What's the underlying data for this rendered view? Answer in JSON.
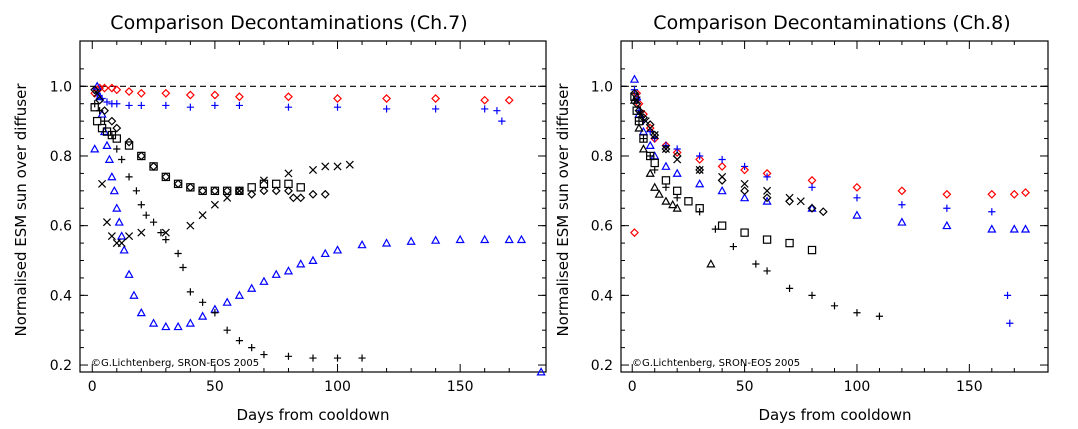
{
  "chart_data": [
    {
      "type": "scatter",
      "title": "Comparison Decontaminations (Ch.7)",
      "xlabel": "Days from cooldown",
      "ylabel": "Normalised ESM sun over diffuser",
      "xlim": [
        -5,
        185
      ],
      "ylim": [
        0.18,
        1.13
      ],
      "xticks": [
        0,
        50,
        100,
        150
      ],
      "yticks": [
        0.2,
        0.4,
        0.6,
        0.8,
        1.0
      ],
      "ytick_labels": [
        "0.2",
        "0.4",
        "0.6",
        "0.8",
        "1.0"
      ],
      "reference_line": 1.0,
      "grid": false,
      "credit": "©G.Lichtenberg, SRON-EOS 2005",
      "series": [
        {
          "marker": "diamond",
          "color": "#ff0000",
          "x": [
            1,
            2,
            3,
            5,
            8,
            10,
            15,
            20,
            30,
            40,
            50,
            60,
            80,
            100,
            120,
            140,
            160,
            170
          ],
          "y": [
            0.98,
            0.99,
            0.995,
            0.995,
            0.995,
            0.99,
            0.985,
            0.98,
            0.98,
            0.975,
            0.975,
            0.97,
            0.97,
            0.965,
            0.965,
            0.965,
            0.96,
            0.96
          ]
        },
        {
          "marker": "plus",
          "color": "#0000ff",
          "x": [
            2,
            4,
            6,
            8,
            10,
            15,
            20,
            30,
            40,
            50,
            60,
            80,
            100,
            120,
            140,
            160,
            165,
            167
          ],
          "y": [
            0.98,
            0.965,
            0.955,
            0.95,
            0.95,
            0.945,
            0.945,
            0.945,
            0.94,
            0.945,
            0.945,
            0.94,
            0.94,
            0.935,
            0.935,
            0.935,
            0.93,
            0.9
          ]
        },
        {
          "marker": "triangle",
          "color": "#0000ff",
          "x": [
            1,
            2,
            3,
            4,
            5,
            6,
            7,
            8,
            9,
            10,
            11,
            12,
            13,
            15,
            17,
            20,
            25,
            30,
            35,
            40,
            45,
            50,
            55,
            60,
            65,
            70,
            75,
            80,
            85,
            90,
            95,
            100,
            110,
            120,
            130,
            140,
            150,
            160,
            170,
            175
          ],
          "y": [
            0.82,
            1.0,
            0.97,
            0.92,
            0.87,
            0.83,
            0.79,
            0.74,
            0.7,
            0.65,
            0.61,
            0.57,
            0.53,
            0.46,
            0.4,
            0.35,
            0.32,
            0.31,
            0.31,
            0.32,
            0.34,
            0.36,
            0.38,
            0.4,
            0.42,
            0.44,
            0.46,
            0.47,
            0.49,
            0.5,
            0.52,
            0.53,
            0.545,
            0.55,
            0.555,
            0.558,
            0.56,
            0.56,
            0.56,
            0.56
          ]
        },
        {
          "marker": "diamond",
          "color": "#000000",
          "x": [
            1,
            3,
            5,
            8,
            10,
            15,
            20,
            25,
            30,
            35,
            40,
            45,
            50,
            55,
            60,
            65,
            70,
            75,
            80,
            82,
            85,
            90,
            95
          ],
          "y": [
            0.99,
            0.96,
            0.93,
            0.9,
            0.88,
            0.84,
            0.8,
            0.77,
            0.74,
            0.72,
            0.71,
            0.7,
            0.7,
            0.7,
            0.7,
            0.69,
            0.7,
            0.7,
            0.7,
            0.68,
            0.68,
            0.69,
            0.69
          ]
        },
        {
          "marker": "square",
          "color": "#000000",
          "x": [
            1,
            2,
            4,
            6,
            8,
            10,
            15,
            20,
            25,
            30,
            35,
            40,
            45,
            50,
            55,
            60,
            65,
            70,
            75,
            80,
            85
          ],
          "y": [
            0.94,
            0.9,
            0.88,
            0.87,
            0.86,
            0.85,
            0.83,
            0.8,
            0.77,
            0.74,
            0.72,
            0.71,
            0.7,
            0.7,
            0.7,
            0.7,
            0.71,
            0.72,
            0.72,
            0.72,
            0.71
          ]
        },
        {
          "marker": "cross",
          "color": "#000000",
          "x": [
            2,
            4,
            6,
            8,
            10,
            12,
            15,
            20,
            30,
            40,
            45,
            50,
            55,
            60,
            70,
            80,
            90,
            95,
            100,
            105
          ],
          "y": [
            0.98,
            0.72,
            0.61,
            0.57,
            0.55,
            0.55,
            0.57,
            0.58,
            0.58,
            0.6,
            0.63,
            0.66,
            0.68,
            0.7,
            0.73,
            0.75,
            0.76,
            0.77,
            0.77,
            0.775
          ]
        },
        {
          "marker": "plus",
          "color": "#000000",
          "x": [
            1,
            3,
            5,
            8,
            10,
            12,
            15,
            18,
            20,
            22,
            25,
            28,
            30,
            35,
            37,
            40,
            45,
            50,
            55,
            60,
            65,
            70,
            80,
            90,
            100,
            110
          ],
          "y": [
            0.95,
            0.93,
            0.9,
            0.86,
            0.82,
            0.79,
            0.74,
            0.7,
            0.66,
            0.63,
            0.61,
            0.58,
            0.56,
            0.52,
            0.48,
            0.41,
            0.38,
            0.35,
            0.3,
            0.27,
            0.25,
            0.23,
            0.225,
            0.22,
            0.22,
            0.22
          ]
        },
        {
          "marker": "triangle",
          "color": "#0000ff",
          "x": [
            183
          ],
          "y": [
            0.18
          ]
        }
      ]
    },
    {
      "type": "scatter",
      "title": "Comparison Decontaminations (Ch.8)",
      "xlabel": "Days from cooldown",
      "ylabel": "Normalised ESM sun over diffuser",
      "xlim": [
        -5,
        185
      ],
      "ylim": [
        0.18,
        1.13
      ],
      "xticks": [
        0,
        50,
        100,
        150
      ],
      "yticks": [
        0.2,
        0.4,
        0.6,
        0.8,
        1.0
      ],
      "ytick_labels": [
        "0.2",
        "0.4",
        "0.6",
        "0.8",
        "1.0"
      ],
      "reference_line": 1.0,
      "grid": false,
      "credit": "©G.Lichtenberg, SRON-EOS 2005",
      "series": [
        {
          "marker": "diamond",
          "color": "#ff0000",
          "x": [
            1,
            2,
            3,
            5,
            8,
            10,
            15,
            20,
            30,
            40,
            50,
            60,
            80,
            100,
            120,
            140,
            160,
            170,
            175
          ],
          "y": [
            0.58,
            0.98,
            0.95,
            0.92,
            0.88,
            0.85,
            0.83,
            0.81,
            0.79,
            0.77,
            0.76,
            0.75,
            0.73,
            0.71,
            0.7,
            0.69,
            0.69,
            0.69,
            0.695
          ]
        },
        {
          "marker": "plus",
          "color": "#0000ff",
          "x": [
            1,
            2,
            3,
            5,
            8,
            10,
            15,
            20,
            30,
            40,
            50,
            60,
            80,
            100,
            120,
            140,
            160,
            167,
            168
          ],
          "y": [
            0.99,
            0.96,
            0.93,
            0.9,
            0.87,
            0.85,
            0.83,
            0.82,
            0.8,
            0.79,
            0.77,
            0.74,
            0.71,
            0.68,
            0.66,
            0.65,
            0.64,
            0.4,
            0.32
          ]
        },
        {
          "marker": "triangle",
          "color": "#0000ff",
          "x": [
            1,
            2,
            3,
            5,
            8,
            10,
            15,
            20,
            30,
            40,
            50,
            60,
            80,
            100,
            120,
            140,
            160,
            170,
            175
          ],
          "y": [
            1.02,
            0.97,
            0.92,
            0.87,
            0.83,
            0.8,
            0.77,
            0.75,
            0.72,
            0.7,
            0.68,
            0.67,
            0.65,
            0.63,
            0.61,
            0.6,
            0.59,
            0.59,
            0.59
          ]
        },
        {
          "marker": "diamond",
          "color": "#000000",
          "x": [
            1,
            2,
            3,
            5,
            8,
            10,
            15,
            20,
            30,
            40,
            50,
            60,
            70,
            80,
            85
          ],
          "y": [
            0.98,
            0.95,
            0.93,
            0.91,
            0.89,
            0.86,
            0.82,
            0.8,
            0.76,
            0.73,
            0.7,
            0.68,
            0.67,
            0.65,
            0.64
          ]
        },
        {
          "marker": "cross",
          "color": "#000000",
          "x": [
            2,
            4,
            6,
            8,
            10,
            15,
            20,
            30,
            40,
            50,
            60,
            70,
            75
          ],
          "y": [
            0.96,
            0.92,
            0.9,
            0.88,
            0.86,
            0.82,
            0.79,
            0.76,
            0.74,
            0.72,
            0.7,
            0.68,
            0.67
          ]
        },
        {
          "marker": "square",
          "color": "#000000",
          "x": [
            1,
            2,
            3,
            5,
            8,
            10,
            15,
            20,
            25,
            30,
            40,
            50,
            60,
            70,
            80
          ],
          "y": [
            0.97,
            0.93,
            0.9,
            0.85,
            0.8,
            0.78,
            0.73,
            0.7,
            0.67,
            0.65,
            0.6,
            0.58,
            0.56,
            0.55,
            0.53
          ]
        },
        {
          "marker": "triangle",
          "color": "#000000",
          "x": [
            1,
            3,
            5,
            8,
            10,
            12,
            15,
            18,
            20,
            35
          ],
          "y": [
            0.96,
            0.88,
            0.82,
            0.75,
            0.71,
            0.69,
            0.67,
            0.66,
            0.65,
            0.49
          ]
        },
        {
          "marker": "plus",
          "color": "#000000",
          "x": [
            1,
            3,
            5,
            8,
            10,
            15,
            20,
            30,
            37,
            45,
            55,
            60,
            70,
            80,
            90,
            100,
            110
          ],
          "y": [
            0.96,
            0.9,
            0.85,
            0.8,
            0.76,
            0.71,
            0.68,
            0.64,
            0.59,
            0.54,
            0.49,
            0.47,
            0.42,
            0.4,
            0.37,
            0.35,
            0.34
          ]
        }
      ]
    }
  ]
}
